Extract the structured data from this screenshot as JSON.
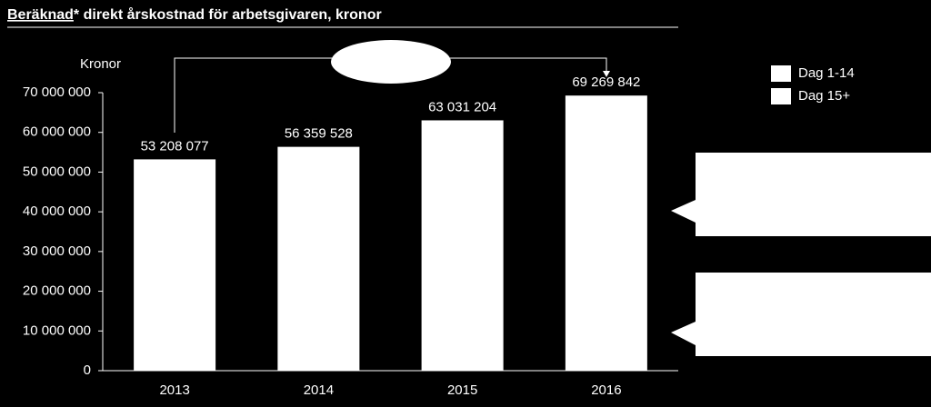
{
  "chart_data": {
    "type": "bar",
    "title_underlined": "Beräknad",
    "title_rest": "* direkt årskostnad för arbetsgivaren, kronor",
    "y_axis_label": "Kronor",
    "categories": [
      "2013",
      "2014",
      "2015",
      "2016"
    ],
    "values": [
      53208077,
      56359528,
      63031204,
      69269842
    ],
    "value_labels": [
      "53 208 077",
      "56 359 528",
      "63 031 204",
      "69 269 842"
    ],
    "color": "#ffffff",
    "legend": [
      "Dag 1-14",
      "Dag 15+"
    ],
    "ylim": [
      0,
      70000000
    ],
    "yticks": [
      0,
      {
        "value": 10000000,
        "label": "10 000 000"
      },
      {
        "value": 20000000,
        "label": "20 000 000"
      },
      {
        "value": 30000000,
        "label": "30 000 000"
      },
      {
        "value": 40000000,
        "label": "40 000 000"
      },
      {
        "value": 50000000,
        "label": "50 000 000"
      },
      {
        "value": 60000000,
        "label": "60 000 000"
      },
      {
        "value": 70000000,
        "label": "70 000 000"
      }
    ]
  }
}
